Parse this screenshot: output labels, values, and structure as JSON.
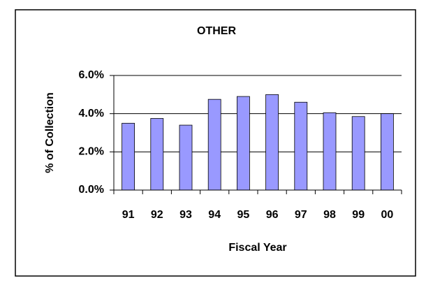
{
  "chart_data": {
    "type": "bar",
    "title": "OTHER",
    "x_label": "Fiscal Year",
    "y_label": "% of Collection",
    "categories": [
      "91",
      "92",
      "93",
      "94",
      "95",
      "96",
      "97",
      "98",
      "99",
      "00"
    ],
    "values": [
      3.5,
      3.75,
      3.4,
      4.75,
      4.9,
      5.0,
      4.6,
      4.05,
      3.85,
      4.0
    ],
    "color": "#9999ff",
    "ylim": [
      0,
      6
    ],
    "yticks": [
      {
        "value": 0,
        "label": "0.0%"
      },
      {
        "value": 2,
        "label": "2.0%"
      },
      {
        "value": 4,
        "label": "4.0%"
      },
      {
        "value": 6,
        "label": "6.0%"
      }
    ],
    "grid": true
  }
}
